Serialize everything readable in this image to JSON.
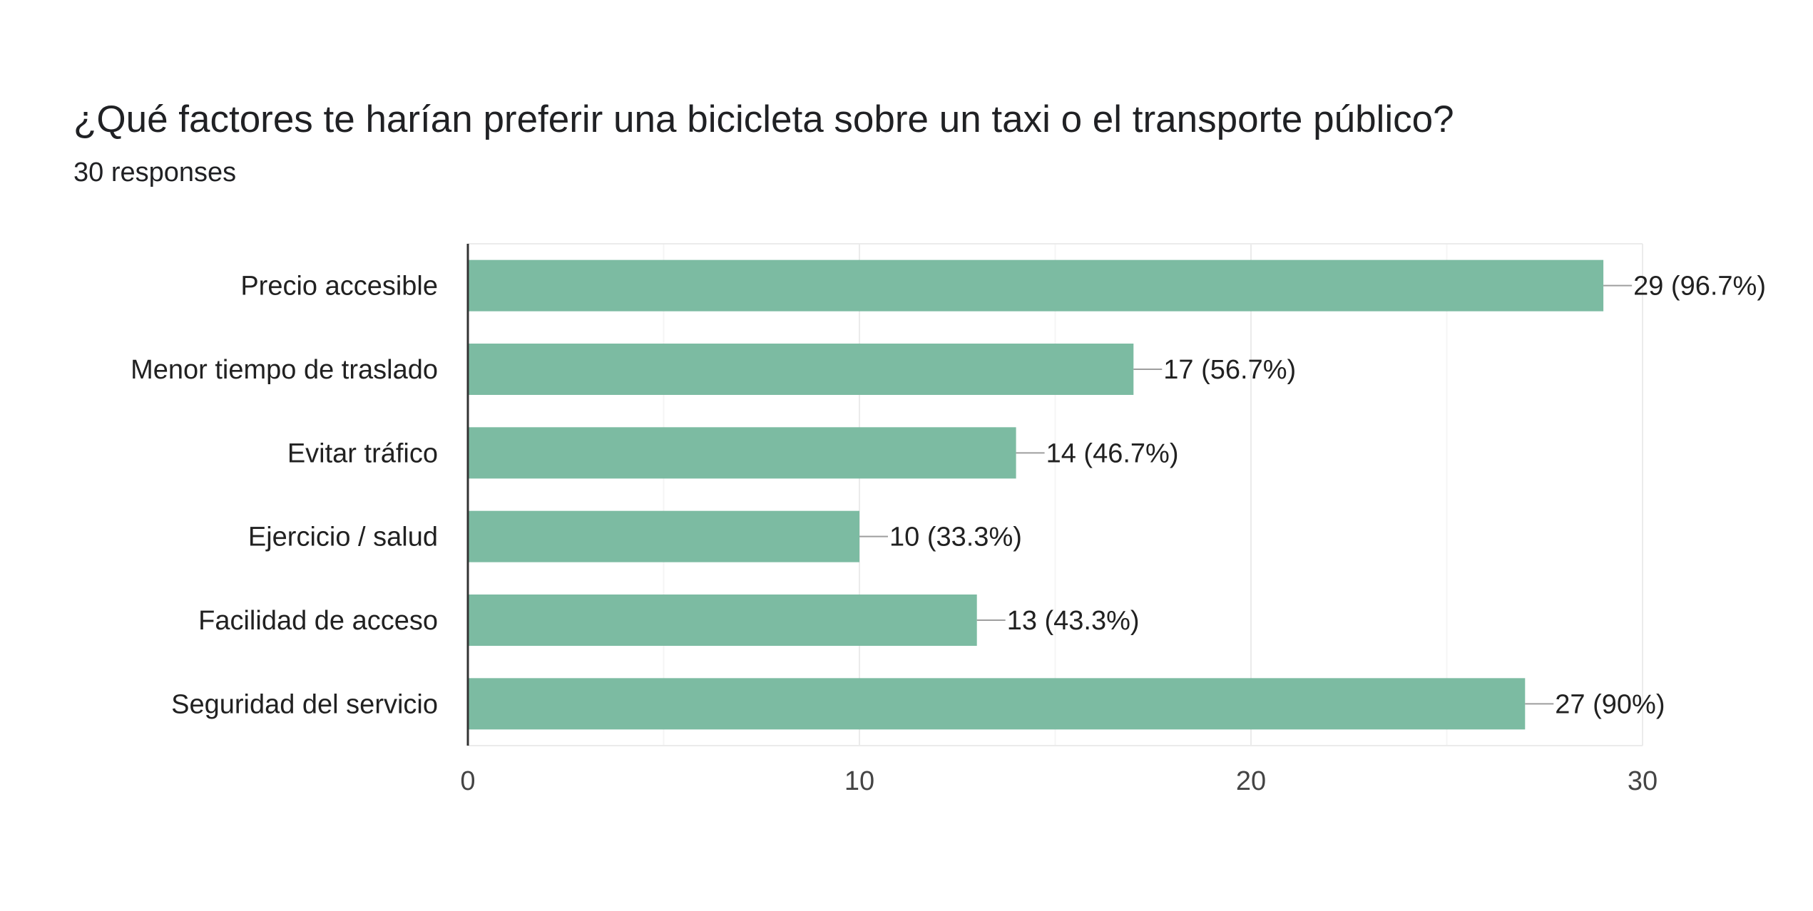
{
  "header": {
    "title": "¿Qué factores te harían preferir una bicicleta sobre un taxi o el transporte público?",
    "responses": "30 responses"
  },
  "chart_data": {
    "type": "bar",
    "orientation": "horizontal",
    "categories": [
      "Precio accesible",
      "Menor tiempo de traslado",
      "Evitar tráfico",
      "Ejercicio / salud",
      "Facilidad de acceso",
      "Seguridad del servicio"
    ],
    "values": [
      29,
      17,
      14,
      10,
      13,
      27
    ],
    "data_labels": [
      "29 (96.7%)",
      "17 (56.7%)",
      "14 (46.7%)",
      "10 (33.3%)",
      "13 (43.3%)",
      "27 (90%)"
    ],
    "xlim": [
      0,
      30
    ],
    "x_ticks": [
      0,
      10,
      20,
      30
    ],
    "x_tick_labels": [
      "0",
      "10",
      "20",
      "30"
    ],
    "minor_gridlines": [
      5,
      15,
      25
    ],
    "grid": true,
    "legend": "none",
    "colors": {
      "bar": "#7cbba2",
      "axis": "#333333",
      "grid": "#ebebeb",
      "leader": "#9e9e9e"
    }
  }
}
